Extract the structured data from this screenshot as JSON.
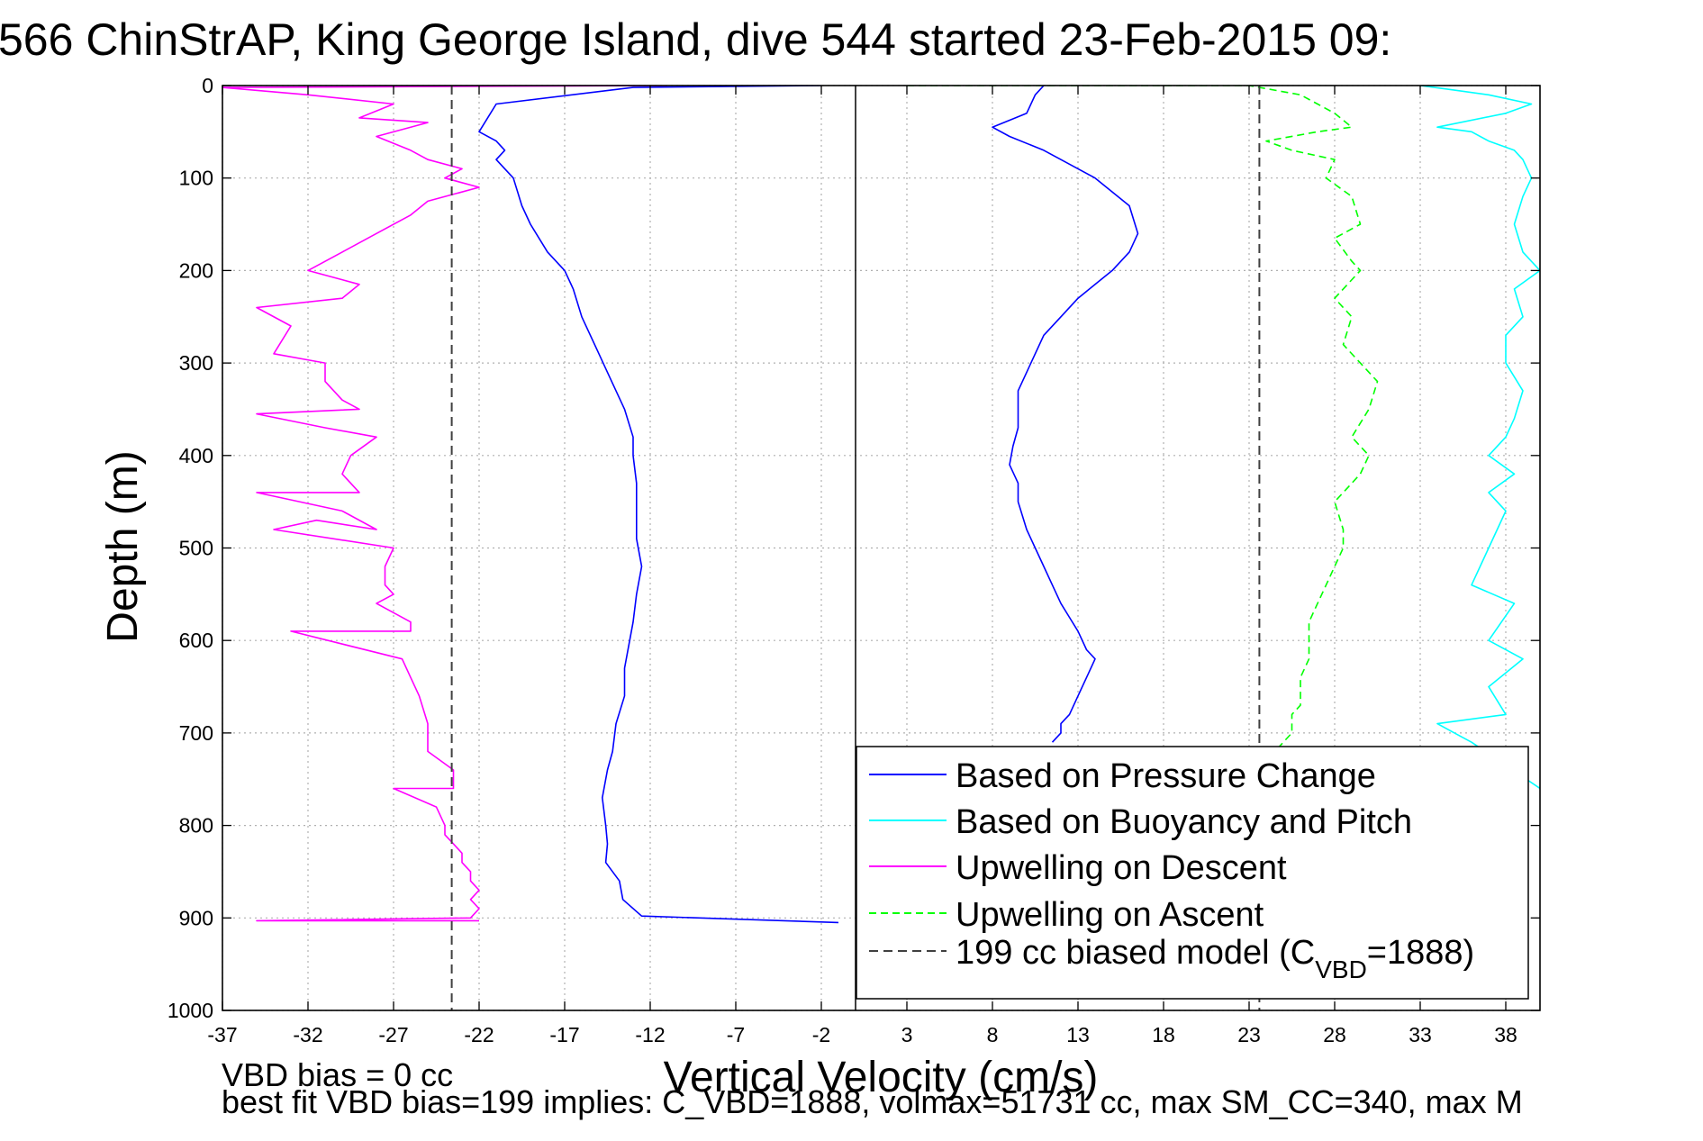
{
  "chart_data": {
    "type": "line",
    "title": "566 ChinStrAP, King George Island, dive 544 started 23-Feb-2015 09:",
    "xlabel": "Vertical Velocity (cm/s)",
    "ylabel": "Depth (m)",
    "xlim": [
      -37,
      40
    ],
    "ylim": [
      0,
      1000
    ],
    "y_reversed": true,
    "grid": true,
    "x_ticks": [
      -37,
      -32,
      -27,
      -22,
      -17,
      -12,
      -7,
      -2,
      3,
      8,
      13,
      18,
      23,
      28,
      33,
      38
    ],
    "y_ticks": [
      0,
      100,
      200,
      300,
      400,
      500,
      600,
      700,
      800,
      900,
      1000
    ],
    "legend_position": "bottom-right",
    "series": [
      {
        "name": "Based on Pressure Change",
        "color": "#0000ff",
        "dash": "solid",
        "panels": [
          {
            "x": [
              -2,
              -13,
              -21,
              -22,
              -21,
              -20.5,
              -21,
              -20,
              -19.5,
              -19,
              -18,
              -17,
              -16.5,
              -16,
              -15.5,
              -15,
              -14.5,
              -14,
              -13.5,
              -13,
              -13,
              -12.8,
              -12.8,
              -12.8,
              -12.5,
              -12.8,
              -13,
              -13.2,
              -13.5,
              -13.5,
              -14,
              -14.2,
              -14.5,
              -14.8,
              -14.6,
              -14.5,
              -14.6,
              -13.8,
              -13.6,
              -12.5,
              -1
            ],
            "y": [
              0,
              2,
              20,
              50,
              60,
              70,
              80,
              100,
              130,
              150,
              180,
              200,
              220,
              250,
              270,
              290,
              310,
              330,
              350,
              380,
              400,
              430,
              460,
              490,
              520,
              550,
              580,
              600,
              630,
              660,
              690,
              720,
              740,
              770,
              800,
              820,
              840,
              860,
              880,
              898,
              905
            ]
          },
          {
            "x": [
              11,
              10.5,
              10,
              8,
              9,
              11,
              13,
              14,
              15,
              16,
              16.5,
              16,
              15,
              14,
              13,
              12,
              11,
              10.5,
              10,
              9.5,
              9.5,
              9.5,
              9.2,
              9,
              9.5,
              9.5,
              10,
              10.5,
              11,
              11.5,
              12,
              12.5,
              13,
              13.5,
              14,
              13.5,
              13,
              12.5,
              12,
              12,
              11.5
            ],
            "y": [
              0,
              10,
              30,
              45,
              55,
              70,
              90,
              100,
              115,
              130,
              160,
              180,
              200,
              215,
              230,
              250,
              270,
              290,
              310,
              330,
              350,
              370,
              390,
              410,
              430,
              450,
              480,
              500,
              520,
              540,
              560,
              575,
              590,
              610,
              620,
              640,
              660,
              680,
              690,
              700,
              710
            ]
          }
        ]
      },
      {
        "name": "Based on Buoyancy and Pitch",
        "color": "#00ffff",
        "dash": "solid",
        "panels": [
          {
            "x": [
              33,
              35,
              37,
              39.5,
              38,
              34,
              36,
              37,
              38.5,
              39,
              39.5,
              39,
              38.5,
              39,
              40,
              38.5,
              39,
              38,
              38,
              39,
              38.5,
              38,
              37,
              38.5,
              37,
              38,
              37.5,
              37,
              36,
              38.5,
              37,
              39,
              37,
              38,
              34,
              35,
              36,
              40
            ],
            "y": [
              0,
              5,
              10,
              20,
              30,
              45,
              50,
              60,
              70,
              80,
              100,
              120,
              150,
              180,
              200,
              220,
              250,
              270,
              300,
              330,
              360,
              380,
              400,
              420,
              440,
              460,
              480,
              500,
              540,
              560,
              600,
              620,
              650,
              680,
              690,
              700,
              710,
              760
            ]
          }
        ]
      },
      {
        "name": "Upwelling on Descent",
        "color": "#ff00ff",
        "dash": "solid",
        "panels": [
          {
            "x": [
              -11,
              -37,
              -32,
              -27,
              -29,
              -25,
              -28,
              -26,
              -25,
              -23,
              -24,
              -22,
              -25,
              -26,
              -28,
              -30,
              -32,
              -29,
              -30,
              -35,
              -33,
              -34,
              -31,
              -31,
              -30,
              -29,
              -35,
              -31,
              -28,
              -29.5,
              -30,
              -29,
              -35,
              -30,
              -28,
              -31.5,
              -34,
              -27,
              -27.5,
              -27.5,
              -27,
              -28,
              -26,
              -26,
              -33,
              -26.5,
              -26,
              -25.5,
              -25,
              -25,
              -25,
              -23.5,
              -23.5,
              -27,
              -24.5,
              -24,
              -24,
              -23.5,
              -23,
              -23,
              -22.5,
              -22.5,
              -22,
              -22.5,
              -22,
              -22.5,
              -35,
              -22
            ],
            "y": [
              0,
              2,
              10,
              20,
              35,
              40,
              55,
              70,
              80,
              90,
              100,
              110,
              125,
              140,
              160,
              180,
              200,
              215,
              230,
              240,
              260,
              290,
              300,
              320,
              340,
              350,
              355,
              370,
              380,
              400,
              420,
              440,
              440,
              460,
              480,
              470,
              480,
              500,
              520,
              540,
              550,
              560,
              580,
              590,
              590,
              620,
              640,
              660,
              690,
              700,
              720,
              740,
              760,
              760,
              780,
              800,
              810,
              820,
              830,
              840,
              850,
              860,
              870,
              880,
              890,
              900,
              903,
              903
            ]
          }
        ]
      },
      {
        "name": "Upwelling on Ascent",
        "color": "#00ff00",
        "dash": "dashed",
        "panels": [
          {
            "x": [
              3,
              23,
              26,
              27,
              28,
              29,
              27,
              24,
              25.5,
              28,
              27.5,
              29,
              29.5,
              28,
              29,
              29.5,
              28,
              29,
              28.5,
              29.5,
              30.5,
              30,
              29,
              30,
              29.5,
              28,
              28.5,
              28.5,
              28,
              27.5,
              27,
              26.5,
              26.5,
              26.5,
              26,
              26,
              26,
              25.5,
              25.5,
              25.5,
              25,
              24.5,
              24,
              24
            ],
            "y": [
              0,
              0,
              10,
              20,
              30,
              45,
              50,
              60,
              70,
              80,
              100,
              120,
              150,
              165,
              190,
              200,
              230,
              250,
              280,
              300,
              320,
              350,
              380,
              400,
              420,
              450,
              480,
              500,
              520,
              540,
              560,
              580,
              600,
              620,
              640,
              660,
              670,
              680,
              690,
              700,
              710,
              720,
              730,
              740
            ]
          }
        ]
      },
      {
        "name": "199 cc biased model (C",
        "name_sub": "VBD",
        "name_suffix": "=1888)",
        "color": "#404040",
        "dash": "dashed",
        "panels": [
          {
            "x": [
              -23.6,
              -23.6
            ],
            "y": [
              0,
              1000
            ]
          },
          {
            "x": [
              23.6,
              23.6
            ],
            "y": [
              0,
              1000
            ]
          }
        ]
      }
    ],
    "divider_x": 0,
    "annotations": [
      "VBD bias = 0 cc",
      "best fit VBD bias=199 implies: C_VBD=1888, volmax=51731 cc, max SM_CC=340, max M"
    ]
  }
}
